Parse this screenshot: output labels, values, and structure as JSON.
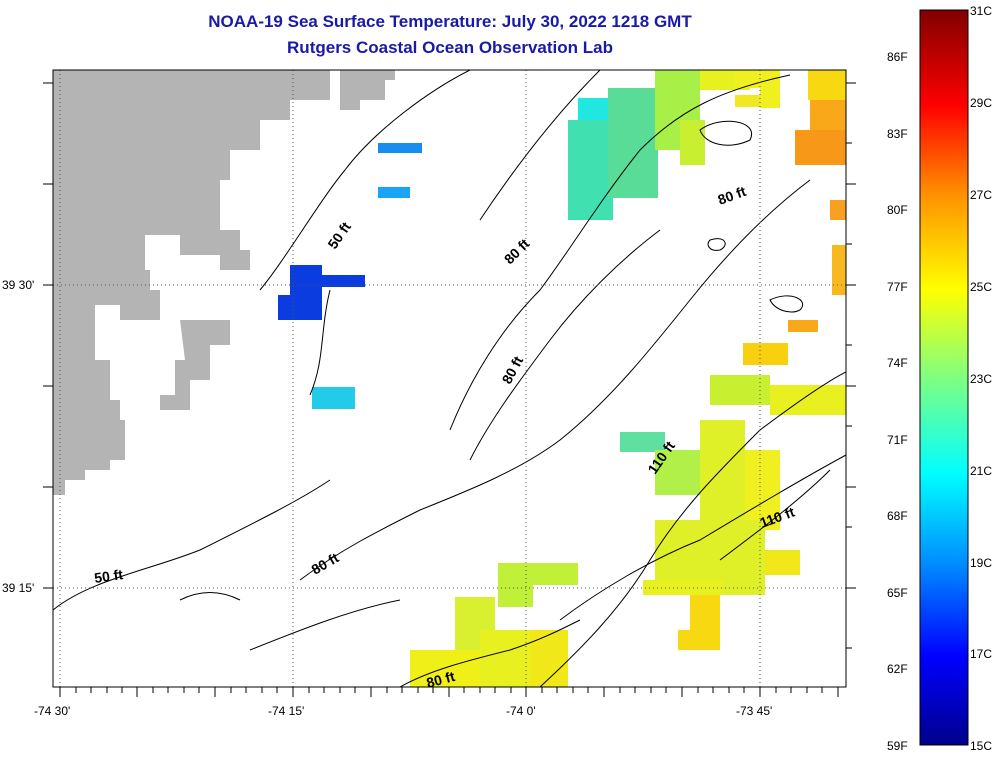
{
  "title": {
    "line1": "NOAA-19 Sea Surface Temperature:  July 30, 2022 1218 GMT",
    "line2": "Rutgers Coastal Ocean Observation Lab"
  },
  "axes": {
    "x_ticks": [
      "-74 30'",
      "-74 15'",
      "-74 0'",
      "-73 45'"
    ],
    "y_ticks": [
      "39 30'",
      "39 15'"
    ]
  },
  "colorbar": {
    "fahrenheit": [
      "86F",
      "83F",
      "80F",
      "77F",
      "74F",
      "71F",
      "68F",
      "65F",
      "62F",
      "59F"
    ],
    "celsius": [
      "31C",
      "29C",
      "27C",
      "25C",
      "23C",
      "21C",
      "19C",
      "17C",
      "15C"
    ]
  },
  "contour_labels": [
    "50 ft",
    "50 ft",
    "80 ft",
    "80 ft",
    "80 ft",
    "80 ft",
    "80 ft",
    "110 ft",
    "110 ft"
  ],
  "colors": {
    "title": "#1a1aa8",
    "land": "#b4b4b4",
    "frame": "#000000"
  }
}
